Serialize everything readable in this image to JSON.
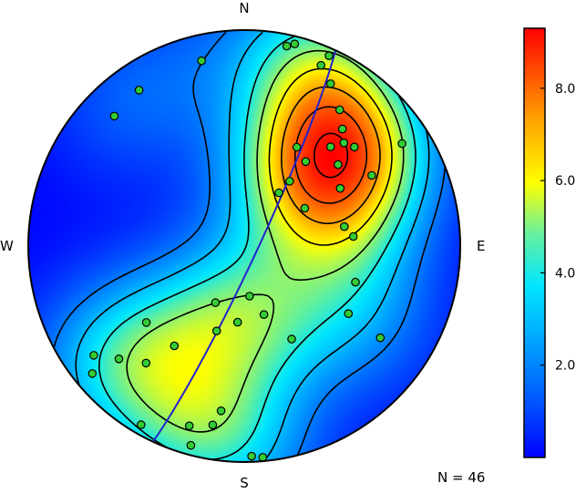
{
  "chart_data": {
    "type": "stereonet-density",
    "directions": {
      "north": "N",
      "south": "S",
      "east": "E",
      "west": "W"
    },
    "count_label": "N = 46",
    "colorbar": {
      "ticks": [
        2.0,
        4.0,
        6.0,
        8.0
      ],
      "tick_labels": [
        "2.0",
        "4.0",
        "6.0",
        "8.0"
      ],
      "min": 0,
      "max": 9.3
    },
    "colors": {
      "low": "#0000ff",
      "cyan": "#00e6ff",
      "yellow": "#ffff00",
      "orange": "#ff8000",
      "high": "#ff0000",
      "point_fill": "#33cc33",
      "great_circle": "#2222cc"
    },
    "great_circle": {
      "strike_deg": 25,
      "dip_deg": 85
    },
    "poles": [
      {
        "trend": 14,
        "plunge": 4
      },
      {
        "trend": 12,
        "plunge": 6
      },
      {
        "trend": 23,
        "plunge": 10
      },
      {
        "trend": 24,
        "plunge": 4
      },
      {
        "trend": 347,
        "plunge": 13
      },
      {
        "trend": 28,
        "plunge": 16
      },
      {
        "trend": 35,
        "plunge": 24
      },
      {
        "trend": 40,
        "plunge": 30
      },
      {
        "trend": 44,
        "plunge": 34
      },
      {
        "trend": 48,
        "plunge": 32
      },
      {
        "trend": 57,
        "plunge": 14
      },
      {
        "trend": 61,
        "plunge": 33
      },
      {
        "trend": 41,
        "plunge": 39
      },
      {
        "trend": 49,
        "plunge": 42
      },
      {
        "trend": 28,
        "plunge": 47
      },
      {
        "trend": 36,
        "plunge": 50
      },
      {
        "trend": 59,
        "plunge": 47
      },
      {
        "trend": 35,
        "plunge": 60
      },
      {
        "trend": 58,
        "plunge": 63
      },
      {
        "trend": 33,
        "plunge": 66
      },
      {
        "trend": 326,
        "plunge": 14
      },
      {
        "trend": 315,
        "plunge": 16
      },
      {
        "trend": 79,
        "plunge": 51
      },
      {
        "trend": 85,
        "plunge": 48
      },
      {
        "trend": 108,
        "plunge": 45
      },
      {
        "trend": 124,
        "plunge": 25
      },
      {
        "trend": 123,
        "plunge": 42
      },
      {
        "trend": 153,
        "plunge": 50
      },
      {
        "trend": 164,
        "plunge": 63
      },
      {
        "trend": 174,
        "plunge": 71
      },
      {
        "trend": 185,
        "plunge": 61
      },
      {
        "trend": 198,
        "plunge": 56
      },
      {
        "trend": 207,
        "plunge": 66
      },
      {
        "trend": 215,
        "plunge": 43
      },
      {
        "trend": 232,
        "plunge": 42
      },
      {
        "trend": 220,
        "plunge": 30
      },
      {
        "trend": 228,
        "plunge": 23
      },
      {
        "trend": 234,
        "plunge": 15
      },
      {
        "trend": 230,
        "plunge": 9
      },
      {
        "trend": 188,
        "plunge": 24
      },
      {
        "trend": 190,
        "plunge": 17
      },
      {
        "trend": 197,
        "plunge": 14
      },
      {
        "trend": 195,
        "plunge": 5
      },
      {
        "trend": 178,
        "plunge": 3
      },
      {
        "trend": 175,
        "plunge": 2
      },
      {
        "trend": 210,
        "plunge": 5
      }
    ]
  }
}
